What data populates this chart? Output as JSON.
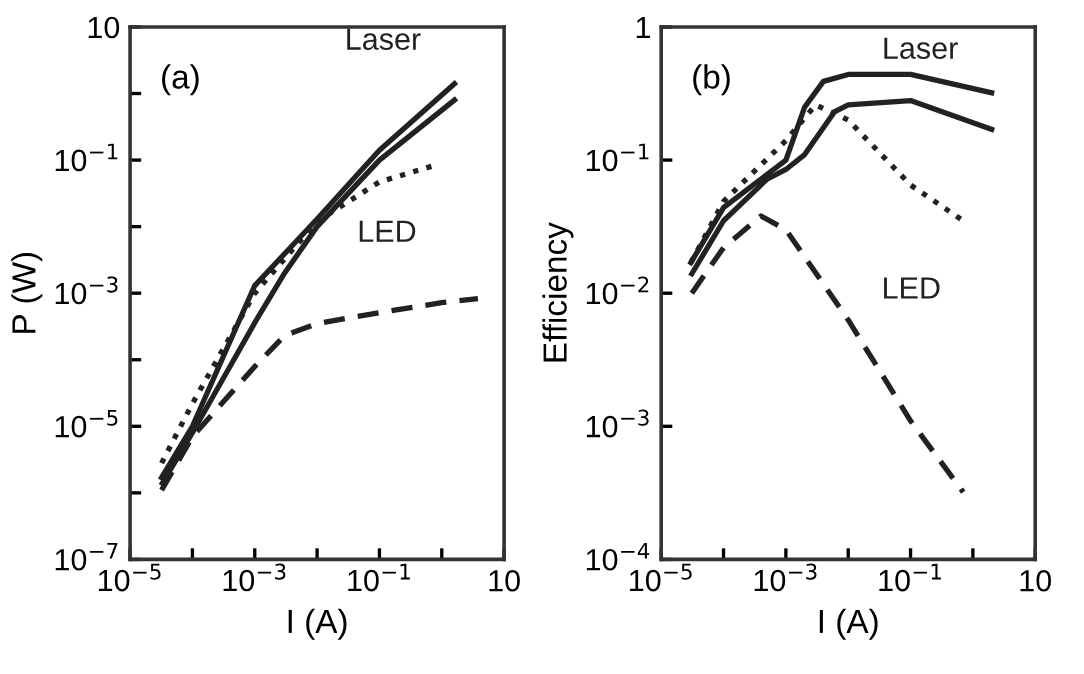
{
  "chart_data": [
    {
      "type": "line",
      "xlabel": "I (A)",
      "ylabel": "P (W)",
      "annotations": [
        "(a)"
      ],
      "log": "xy",
      "grid": false,
      "legend": false,
      "xlim": [
        1e-05,
        10
      ],
      "ylim": [
        1e-07,
        10
      ],
      "xticks": [
        {
          "value": 1e-05,
          "label": "10$^{−5}$"
        },
        {
          "value": 0.0001,
          "label": null
        },
        {
          "value": 0.001,
          "label": "10$^{−3}$"
        },
        {
          "value": 0.01,
          "label": null
        },
        {
          "value": 0.1,
          "label": "10$^{−1}$"
        },
        {
          "value": 1,
          "label": null
        },
        10
      ],
      "yticks": [
        {
          "value": 1e-07,
          "label": "10$^{−7}$"
        },
        {
          "value": 1e-06,
          "label": null
        },
        {
          "value": 1e-05,
          "label": "10$^{−5}$"
        },
        {
          "value": 0.0001,
          "label": null
        },
        {
          "value": 0.001,
          "label": "10$^{−3}$"
        },
        {
          "value": 0.01,
          "label": null
        },
        {
          "value": 0.1,
          "label": "10$^{−1}$"
        },
        {
          "value": 1,
          "label": null
        },
        10
      ],
      "series": [
        {
          "name": "Laser",
          "color": "#222222",
          "line_style": "solid",
          "x": [
            3.2e-05,
            0.0001,
            0.001,
            0.01,
            0.1,
            1.6
          ],
          "values": [
            1.7e-06,
            1e-05,
            0.0013,
            0.013,
            0.14,
            1.4
          ]
        },
        {
          "color": "#222222",
          "line_style": "solid",
          "x": [
            3.3e-05,
            0.0001,
            0.001,
            0.003,
            0.01,
            0.1,
            1.6
          ],
          "values": [
            1.4e-06,
            8e-06,
            0.00036,
            0.002,
            0.01,
            0.1,
            0.8
          ]
        },
        {
          "name": "LED",
          "color": "#222222",
          "line_style": "dotted",
          "x": [
            3.2e-05,
            0.0001,
            0.001,
            0.01,
            0.1,
            0.9
          ],
          "values": [
            2.8e-06,
            2.2e-05,
            0.001,
            0.012,
            0.047,
            0.087
          ]
        },
        {
          "color": "#222222",
          "line_style": "dashed",
          "x": [
            3.2e-05,
            0.0001,
            0.001,
            0.003,
            0.01,
            0.1,
            1,
            3.8
          ],
          "values": [
            1.1e-06,
            7e-06,
            7.9e-05,
            0.00023,
            0.00035,
            0.00051,
            0.00072,
            0.00083
          ]
        }
      ]
    },
    {
      "type": "line",
      "xlabel": "I (A)",
      "ylabel": "Efficiency",
      "annotations": [
        "(b)"
      ],
      "log": "xy",
      "grid": false,
      "legend": false,
      "xlim": [
        1e-05,
        10
      ],
      "ylim": [
        0.0001,
        1
      ],
      "xticks": [
        {
          "value": 1e-05,
          "label": "10$^{−5}$"
        },
        {
          "value": 0.0001,
          "label": null
        },
        {
          "value": 0.001,
          "label": "10$^{−3}$"
        },
        {
          "value": 0.01,
          "label": null
        },
        {
          "value": 0.1,
          "label": "10$^{−1}$"
        },
        {
          "value": 1,
          "label": null
        },
        10
      ],
      "yticks": [
        {
          "value": 0.0001,
          "label": "10$^{−4}$"
        },
        {
          "value": 0.001,
          "label": "10$^{−3}$"
        },
        {
          "value": 0.01,
          "label": "10$^{−2}$"
        },
        {
          "value": 0.1,
          "label": "10$^{−1}$"
        },
        1
      ],
      "series": [
        {
          "name": "Laser",
          "color": "#222222",
          "line_style": "solid",
          "x": [
            3e-05,
            0.0001,
            0.001,
            0.002,
            0.004,
            0.01,
            0.1,
            2
          ],
          "values": [
            0.017,
            0.044,
            0.1,
            0.25,
            0.39,
            0.44,
            0.44,
            0.32
          ]
        },
        {
          "color": "#222222",
          "line_style": "solid",
          "x": [
            3.1e-05,
            0.0001,
            0.0005,
            0.001,
            0.002,
            0.006,
            0.01,
            0.1,
            2
          ],
          "values": [
            0.014,
            0.035,
            0.072,
            0.085,
            0.11,
            0.23,
            0.26,
            0.28,
            0.17
          ]
        },
        {
          "name": "LED",
          "color": "#222222",
          "line_style": "dotted",
          "x": [
            3e-05,
            0.0001,
            0.001,
            0.003,
            0.01,
            0.1,
            0.7
          ],
          "values": [
            0.017,
            0.049,
            0.14,
            0.26,
            0.2,
            0.065,
            0.035
          ]
        },
        {
          "color": "#222222",
          "line_style": "dashed",
          "x": [
            3.1e-05,
            0.0001,
            0.0004,
            0.001,
            0.01,
            0.1,
            0.7
          ],
          "values": [
            0.01,
            0.022,
            0.038,
            0.03,
            0.0063,
            0.0011,
            0.00032
          ]
        }
      ]
    }
  ]
}
